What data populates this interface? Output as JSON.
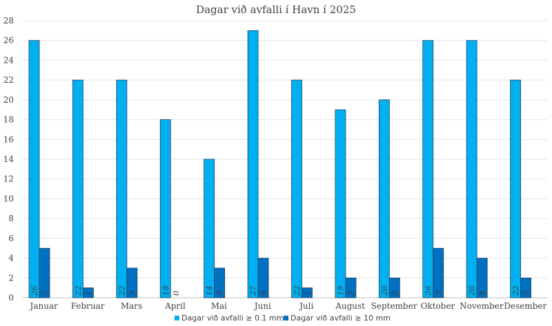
{
  "chart_data": {
    "type": "bar",
    "title": "Dagar við avfalli í Havn í 2025",
    "xlabel": "",
    "ylabel": "",
    "ylim": [
      0,
      28
    ],
    "yticks": [
      0,
      2,
      4,
      6,
      8,
      10,
      12,
      14,
      16,
      18,
      20,
      22,
      24,
      26,
      28
    ],
    "grid": true,
    "legend_position": "bottom",
    "categories": [
      "Januar",
      "Februar",
      "Mars",
      "April",
      "Mai",
      "Juni",
      "Juli",
      "August",
      "September",
      "Oktober",
      "November",
      "Desember"
    ],
    "series": [
      {
        "name": "Dagar við avfalli ≥ 0.1 mm",
        "color": "#00b0f0",
        "values": [
          26,
          22,
          22,
          18,
          14,
          27,
          22,
          19,
          20,
          26,
          26,
          22
        ]
      },
      {
        "name": "Dagar við avfalli ≥ 10 mm",
        "color": "#0070c0",
        "values": [
          5,
          1,
          3,
          0,
          3,
          4,
          1,
          2,
          2,
          5,
          4,
          2
        ]
      }
    ],
    "data_labels": true
  }
}
